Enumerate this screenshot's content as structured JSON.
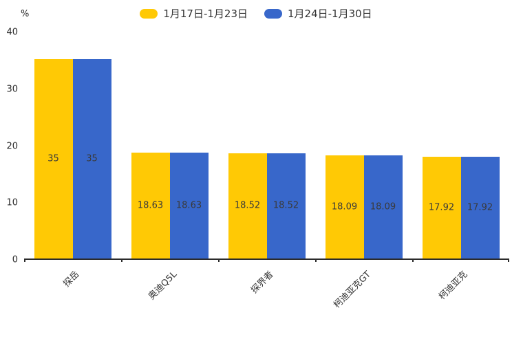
{
  "chart_data": {
    "type": "bar",
    "title": "",
    "ylabel": "%",
    "ylim": [
      0,
      40
    ],
    "yticks": [
      0,
      10,
      20,
      30,
      40
    ],
    "grid": false,
    "legend_position": "top-center",
    "value_label_position": "inside-center",
    "xtick_rotation": 45,
    "categories": [
      "探岳",
      "奥迪Q5L",
      "探界者",
      "柯迪亚克GT",
      "柯迪亚克"
    ],
    "series": [
      {
        "name": "1月17日-1月23日",
        "color": "#FFC905",
        "values": [
          35,
          18.63,
          18.52,
          18.09,
          17.92
        ]
      },
      {
        "name": "1月24日-1月30日",
        "color": "#3867CA",
        "values": [
          35,
          18.63,
          18.52,
          18.09,
          17.92
        ]
      }
    ],
    "colors": {
      "axis": "#2b2b2b",
      "label": "#333333",
      "value_label": "#3a3a3a",
      "background": "#ffffff"
    }
  }
}
